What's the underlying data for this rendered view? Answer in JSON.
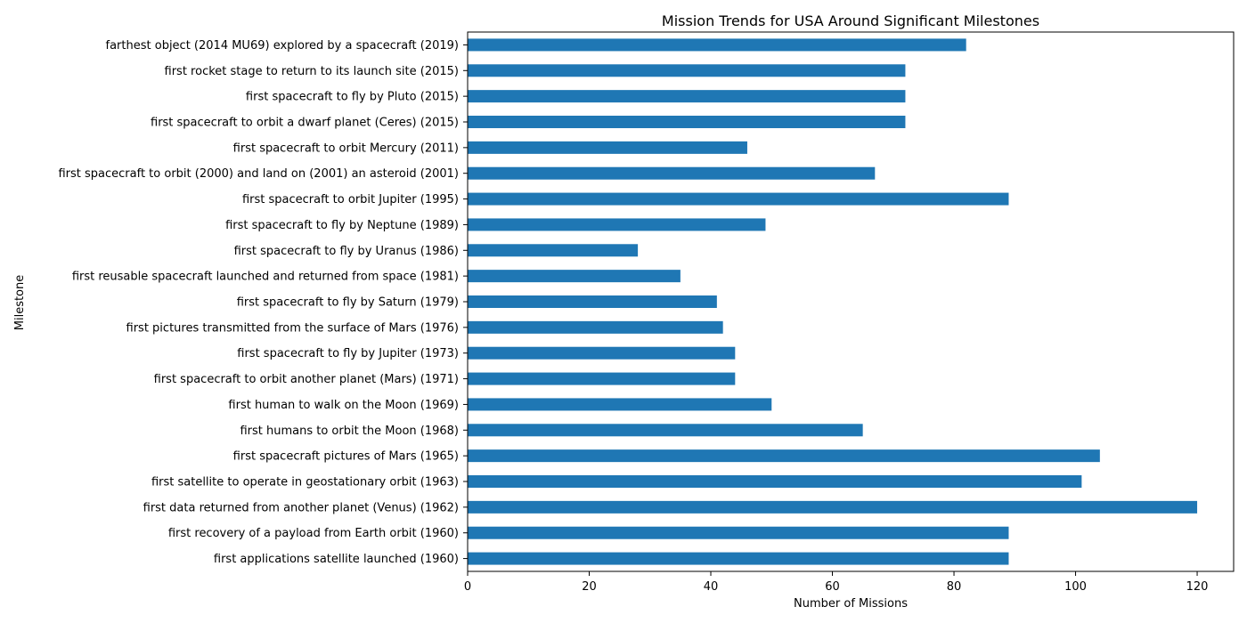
{
  "chart_data": {
    "type": "bar",
    "orientation": "horizontal",
    "title": "Mission Trends for USA Around Significant Milestones",
    "xlabel": "Number of Missions",
    "ylabel": "Milestone",
    "xlim": [
      0,
      126
    ],
    "xticks": [
      0,
      20,
      40,
      60,
      80,
      100,
      120
    ],
    "grid": false,
    "legend": "none",
    "bar_color": "#1f77b4",
    "categories": [
      "farthest object (2014 MU69) explored by a spacecraft (2019)",
      "first rocket stage to return to its launch site (2015)",
      "first spacecraft to fly by Pluto (2015)",
      "first spacecraft to orbit a dwarf planet (Ceres) (2015)",
      "first spacecraft to orbit Mercury (2011)",
      "first spacecraft to orbit (2000) and land on (2001) an asteroid (2001)",
      "first spacecraft to orbit Jupiter (1995)",
      "first spacecraft to fly by Neptune (1989)",
      "first spacecraft to fly by Uranus (1986)",
      "first reusable spacecraft launched and returned from space (1981)",
      "first spacecraft to fly by Saturn (1979)",
      "first pictures transmitted from the surface of Mars (1976)",
      "first spacecraft to fly by Jupiter (1973)",
      "first spacecraft to orbit another planet (Mars) (1971)",
      "first human to walk on the Moon (1969)",
      "first humans to orbit the Moon (1968)",
      "first spacecraft pictures of Mars (1965)",
      "first satellite to operate in geostationary orbit (1963)",
      "first data returned from another planet (Venus) (1962)",
      "first recovery of a payload from Earth orbit (1960)",
      "first applications satellite launched (1960)"
    ],
    "values": [
      82,
      72,
      72,
      72,
      46,
      67,
      89,
      49,
      28,
      35,
      41,
      42,
      44,
      44,
      50,
      65,
      104,
      101,
      120,
      89,
      89
    ]
  }
}
